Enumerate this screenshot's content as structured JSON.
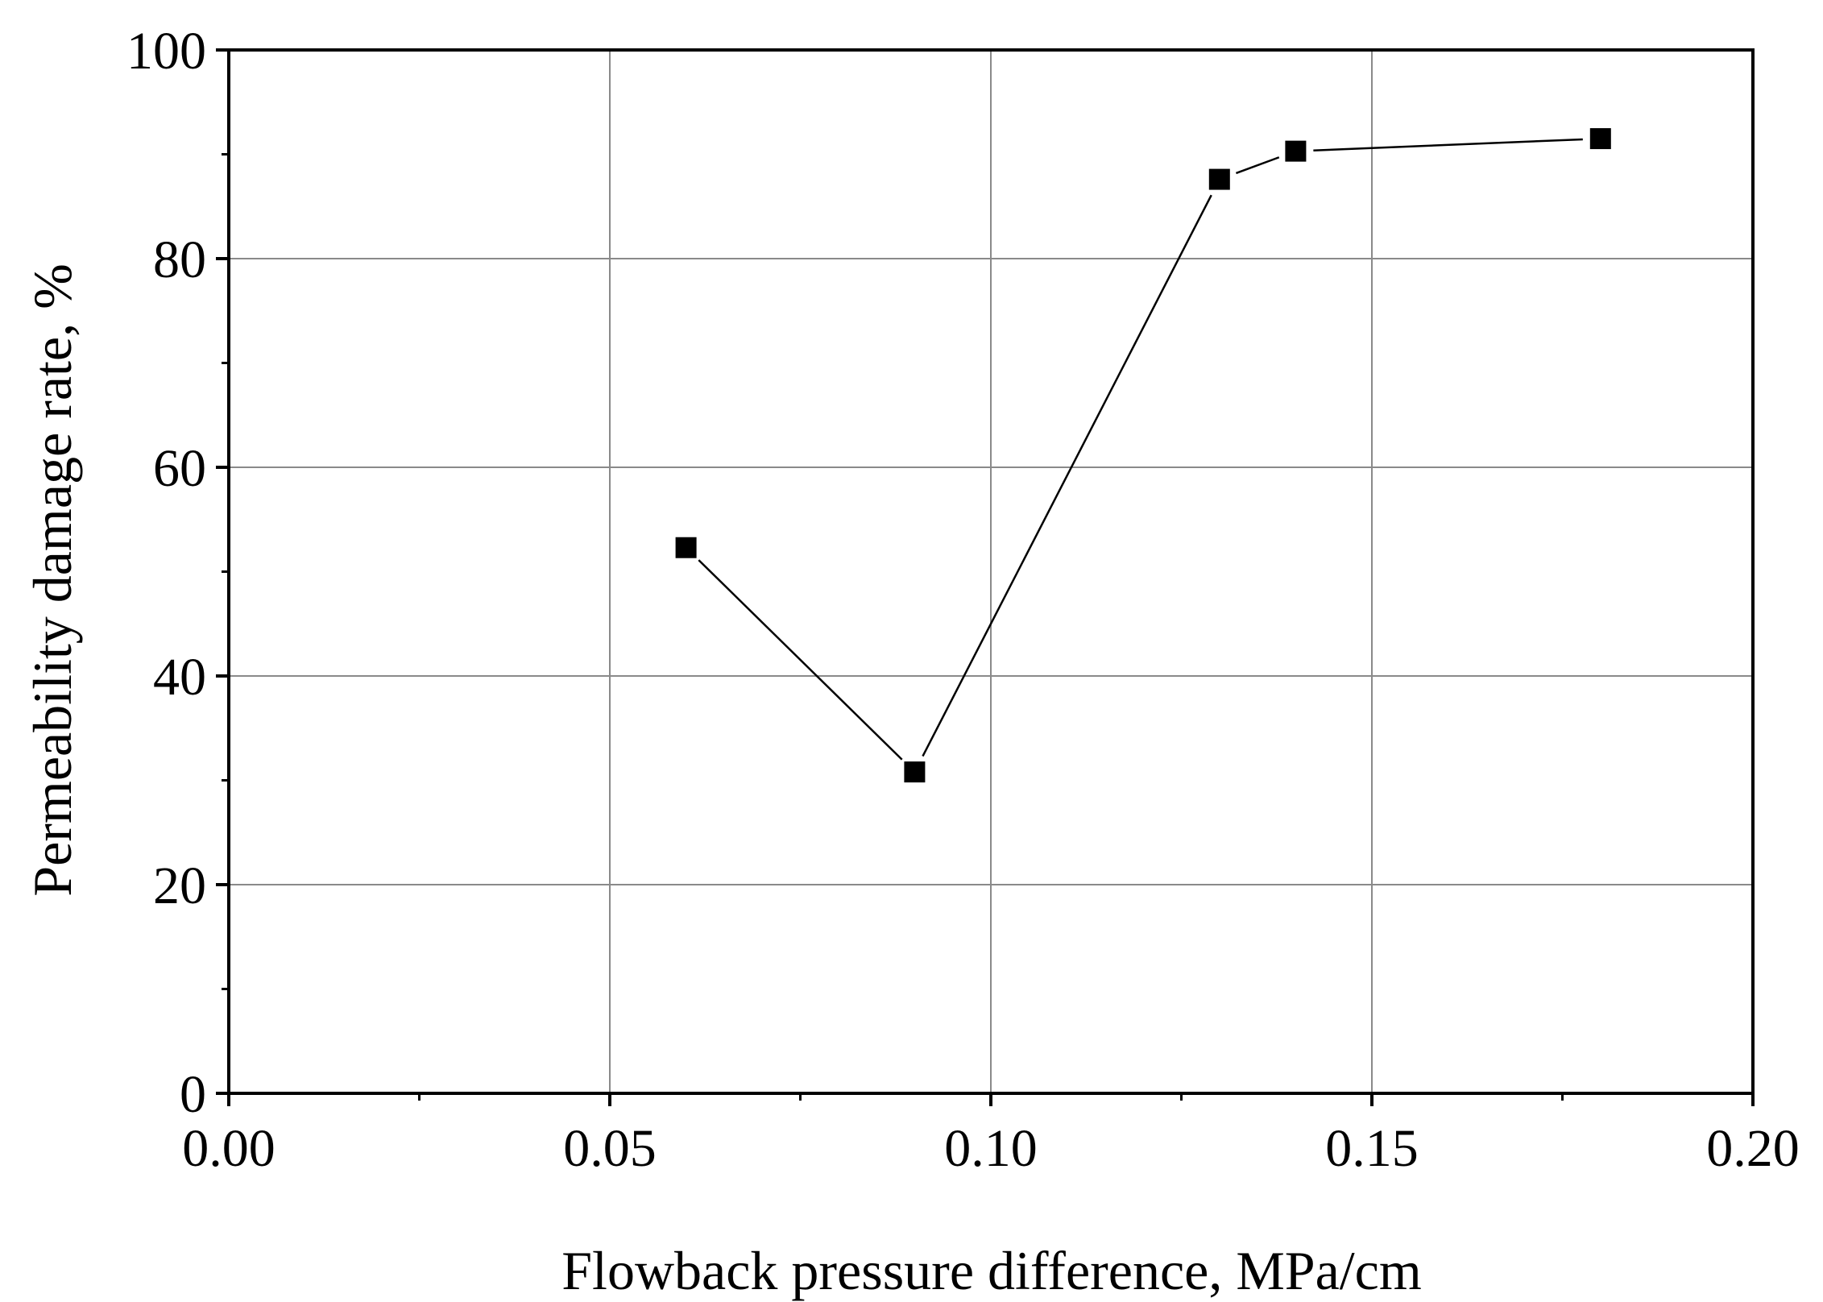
{
  "chart_data": {
    "type": "line",
    "title": "",
    "xlabel": "Flowback pressure difference, MPa/cm",
    "ylabel": "Permeability damage rate, %",
    "xlim": [
      0.0,
      0.2
    ],
    "ylim": [
      0,
      100
    ],
    "x_ticks": [
      {
        "value": 0.0,
        "label": "0.00"
      },
      {
        "value": 0.05,
        "label": "0.05"
      },
      {
        "value": 0.1,
        "label": "0.10"
      },
      {
        "value": 0.15,
        "label": "0.15"
      },
      {
        "value": 0.2,
        "label": "0.20"
      }
    ],
    "x_minor_ticks": [
      0.025,
      0.075,
      0.125,
      0.175
    ],
    "y_ticks": [
      {
        "value": 0,
        "label": "0"
      },
      {
        "value": 20,
        "label": "20"
      },
      {
        "value": 40,
        "label": "40"
      },
      {
        "value": 60,
        "label": "60"
      },
      {
        "value": 80,
        "label": "80"
      },
      {
        "value": 100,
        "label": "100"
      }
    ],
    "y_minor_ticks": [
      10,
      30,
      50,
      70,
      90
    ],
    "grid": true,
    "series": [
      {
        "name": "Permeability damage rate",
        "marker": "square",
        "color": "#000000",
        "x": [
          0.06,
          0.09,
          0.13,
          0.14,
          0.18
        ],
        "y": [
          52.3,
          30.8,
          87.6,
          90.3,
          91.5
        ]
      }
    ]
  }
}
